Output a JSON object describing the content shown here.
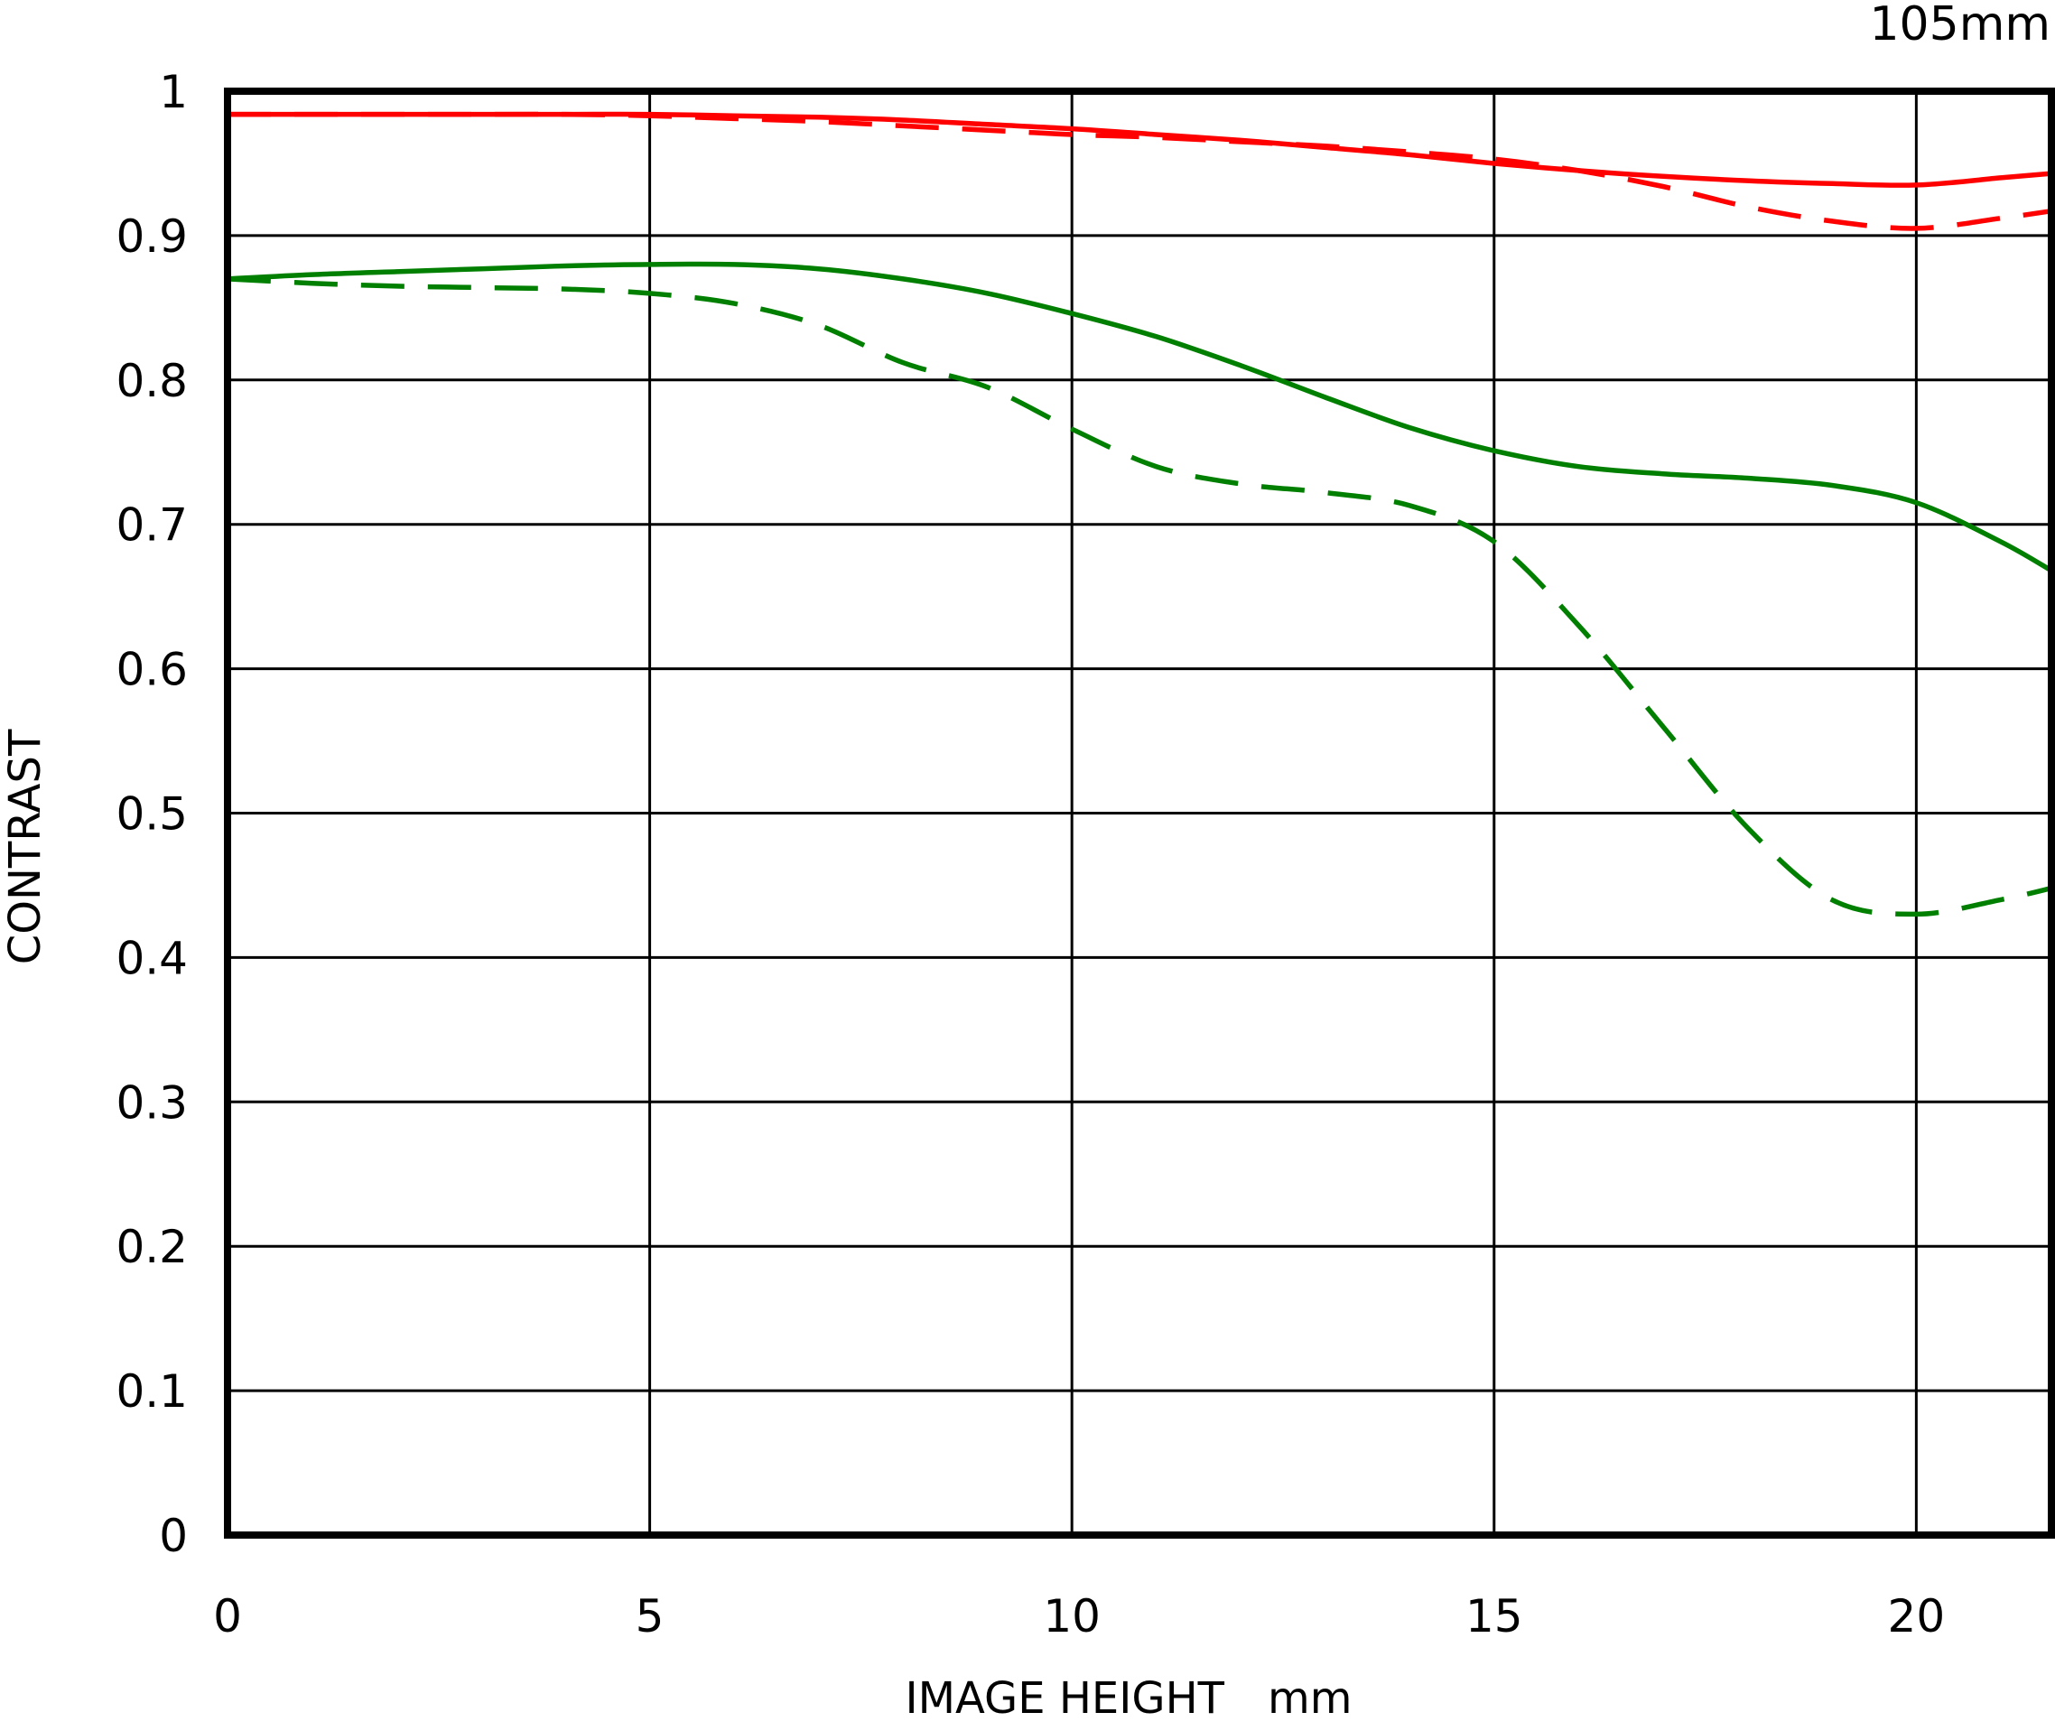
{
  "chart_data": {
    "type": "line",
    "title": "",
    "corner_label": "105mm",
    "xlabel": "IMAGE HEIGHT　mm",
    "ylabel": "CONTRAST",
    "xlim": [
      0,
      21.6
    ],
    "ylim": [
      0,
      1
    ],
    "x_ticks": [
      "0",
      "5",
      "10",
      "15",
      "20"
    ],
    "y_ticks": [
      "0",
      "0.1",
      "0.2",
      "0.3",
      "0.4",
      "0.5",
      "0.6",
      "0.7",
      "0.8",
      "0.9",
      "1"
    ],
    "grid": true,
    "legend": "none",
    "series": [
      {
        "color": "#ff0000",
        "style": "solid",
        "x": [
          0,
          1,
          2,
          3,
          4,
          5,
          6,
          7,
          8,
          9,
          10,
          11,
          12,
          13,
          14,
          15,
          16,
          17,
          18,
          19,
          20,
          21,
          21.6
        ],
        "y": [
          0.984,
          0.984,
          0.984,
          0.984,
          0.984,
          0.984,
          0.983,
          0.982,
          0.98,
          0.977,
          0.974,
          0.97,
          0.966,
          0.961,
          0.956,
          0.95,
          0.945,
          0.941,
          0.938,
          0.936,
          0.935,
          0.94,
          0.943
        ]
      },
      {
        "color": "#ff0000",
        "style": "dashed",
        "x": [
          0,
          1,
          2,
          3,
          4,
          5,
          6,
          7,
          8,
          9,
          10,
          11,
          12,
          13,
          14,
          15,
          16,
          17,
          18,
          19,
          20,
          21,
          21.6
        ],
        "y": [
          0.984,
          0.984,
          0.984,
          0.984,
          0.984,
          0.983,
          0.981,
          0.979,
          0.976,
          0.973,
          0.97,
          0.968,
          0.965,
          0.962,
          0.958,
          0.953,
          0.945,
          0.934,
          0.92,
          0.91,
          0.905,
          0.912,
          0.917
        ]
      },
      {
        "color": "#007f00",
        "style": "solid",
        "x": [
          0,
          1,
          2,
          3,
          4,
          5,
          6,
          7,
          8,
          9,
          10,
          11,
          12,
          13,
          14,
          15,
          16,
          17,
          18,
          19,
          20,
          21,
          21.6
        ],
        "y": [
          0.87,
          0.873,
          0.875,
          0.877,
          0.879,
          0.88,
          0.88,
          0.877,
          0.87,
          0.86,
          0.846,
          0.83,
          0.81,
          0.788,
          0.767,
          0.751,
          0.74,
          0.735,
          0.732,
          0.727,
          0.715,
          0.688,
          0.668
        ]
      },
      {
        "color": "#007f00",
        "style": "dashed",
        "x": [
          0,
          1,
          2,
          3,
          4,
          5,
          6,
          7,
          8,
          9,
          10,
          11,
          12,
          13,
          14,
          15,
          16,
          17,
          18,
          19,
          20,
          21,
          21.6
        ],
        "y": [
          0.87,
          0.867,
          0.865,
          0.864,
          0.863,
          0.86,
          0.853,
          0.838,
          0.812,
          0.795,
          0.766,
          0.74,
          0.728,
          0.722,
          0.713,
          0.688,
          0.63,
          0.56,
          0.49,
          0.44,
          0.43,
          0.44,
          0.448
        ]
      }
    ]
  }
}
